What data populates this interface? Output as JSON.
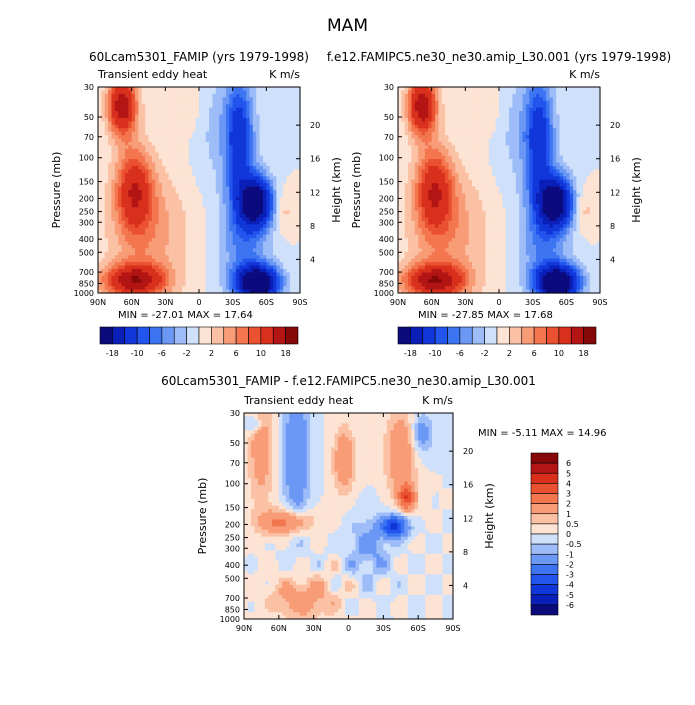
{
  "figure": {
    "title": "MAM"
  },
  "chart_data": [
    {
      "type": "heatmap",
      "title": "60Lcam5301_FAMIP (yrs 1979-1998)",
      "left_label": "Transient eddy heat",
      "right_label": "K m/s",
      "xlabel": "",
      "ylabel": "Pressure (mb)",
      "y2label": "Height (km)",
      "x_ticks": [
        "90N",
        "60N",
        "30N",
        "0",
        "30S",
        "60S",
        "90S"
      ],
      "y_ticks": [
        "30",
        "50",
        "70",
        "100",
        "150",
        "200",
        "250",
        "300",
        "400",
        "500",
        "700",
        "850",
        "1000"
      ],
      "y2_ticks": [
        "20",
        "16",
        "12",
        "8",
        "4"
      ],
      "y_scale": "log",
      "stats": "MIN = -27.01   MAX =  17.64",
      "colorbar_labels": [
        "-18",
        "-10",
        "-6",
        "-2",
        "2",
        "6",
        "10",
        "18"
      ],
      "levels": [
        -18,
        -14,
        -10,
        -8,
        -6,
        -4,
        -2,
        0,
        2,
        4,
        6,
        8,
        10,
        14,
        18
      ],
      "colors": [
        "#0b0b7e",
        "#0a1fb8",
        "#1136d9",
        "#2255ee",
        "#3d74f2",
        "#6b97f5",
        "#9dbcf8",
        "#cfe0fb",
        "#fde3d3",
        "#fbc1a4",
        "#f89c77",
        "#f3764f",
        "#ea5130",
        "#d8301d",
        "#b31515",
        "#860909"
      ],
      "extrema": {
        "min": -27.01,
        "max": 17.64
      }
    },
    {
      "type": "heatmap",
      "title": "f.e12.FAMIPC5.ne30_ne30.amip_L30.001 (yrs 1979-1998)",
      "left_label": "",
      "right_label": "K m/s",
      "xlabel": "",
      "ylabel": "Pressure (mb)",
      "y2label": "Height (km)",
      "x_ticks": [
        "90N",
        "60N",
        "30N",
        "0",
        "30S",
        "60S",
        "90S"
      ],
      "y_ticks": [
        "30",
        "50",
        "70",
        "100",
        "150",
        "200",
        "250",
        "300",
        "400",
        "500",
        "700",
        "850",
        "1000"
      ],
      "y2_ticks": [
        "20",
        "16",
        "12",
        "8",
        "4"
      ],
      "y_scale": "log",
      "stats": "MIN = -27.85   MAX =  17.68",
      "colorbar_labels": [
        "-18",
        "-10",
        "-6",
        "-2",
        "2",
        "6",
        "10",
        "18"
      ],
      "levels": [
        -18,
        -14,
        -10,
        -8,
        -6,
        -4,
        -2,
        0,
        2,
        4,
        6,
        8,
        10,
        14,
        18
      ],
      "colors": [
        "#0b0b7e",
        "#0a1fb8",
        "#1136d9",
        "#2255ee",
        "#3d74f2",
        "#6b97f5",
        "#9dbcf8",
        "#cfe0fb",
        "#fde3d3",
        "#fbc1a4",
        "#f89c77",
        "#f3764f",
        "#ea5130",
        "#d8301d",
        "#b31515",
        "#860909"
      ],
      "extrema": {
        "min": -27.85,
        "max": 17.68
      }
    },
    {
      "type": "heatmap",
      "title": "60Lcam5301_FAMIP - f.e12.FAMIPC5.ne30_ne30.amip_L30.001",
      "left_label": "Transient eddy heat",
      "right_label": "K m/s",
      "xlabel": "",
      "ylabel": "Pressure (mb)",
      "y2label": "Height (km)",
      "x_ticks": [
        "90N",
        "60N",
        "30N",
        "0",
        "30S",
        "60S",
        "90S"
      ],
      "y_ticks": [
        "30",
        "50",
        "70",
        "100",
        "150",
        "200",
        "250",
        "300",
        "400",
        "500",
        "700",
        "850",
        "1000"
      ],
      "y2_ticks": [
        "20",
        "16",
        "12",
        "8",
        "4"
      ],
      "y_scale": "log",
      "stats": "MIN =  -5.11   MAX =  14.96",
      "colorbar_labels": [
        "6",
        "5",
        "4",
        "3",
        "2",
        "1",
        "0.5",
        "0",
        "-0.5",
        "-1",
        "-2",
        "-3",
        "-4",
        "-5",
        "-6"
      ],
      "levels": [
        -6,
        -5,
        -4,
        -3,
        -2,
        -1,
        -0.5,
        0,
        0.5,
        1,
        2,
        3,
        4,
        5,
        6
      ],
      "colors": [
        "#0b0b7e",
        "#0a1fb8",
        "#1136d9",
        "#2255ee",
        "#3d74f2",
        "#6b97f5",
        "#9dbcf8",
        "#cfe0fb",
        "#fde3d3",
        "#fbc1a4",
        "#f89c77",
        "#f3764f",
        "#ea5130",
        "#d8301d",
        "#b31515",
        "#860909"
      ],
      "extrema": {
        "min": -5.11,
        "max": 14.96
      }
    }
  ]
}
